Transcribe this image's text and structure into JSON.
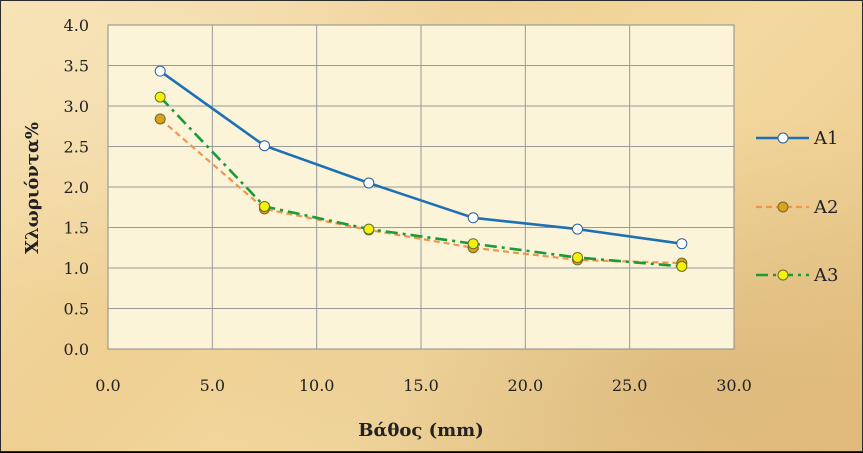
{
  "chart_data": {
    "type": "line",
    "title": "",
    "xlabel": "Βάθος (mm)",
    "ylabel": "Χλωριόντα%",
    "xlim": [
      0,
      30
    ],
    "ylim": [
      0,
      4
    ],
    "x_ticks": [
      "0.0",
      "5.0",
      "10.0",
      "15.0",
      "20.0",
      "25.0",
      "30.0"
    ],
    "y_ticks": [
      "0.0",
      "0.5",
      "1.0",
      "1.5",
      "2.0",
      "2.5",
      "3.0",
      "3.5",
      "4.0"
    ],
    "grid": true,
    "legend_position": "right",
    "x": [
      2.5,
      7.5,
      12.5,
      17.5,
      22.5,
      27.5
    ],
    "series": [
      {
        "name": "A1",
        "values": [
          3.43,
          2.51,
          2.05,
          1.62,
          1.48,
          1.3
        ],
        "color": "#1f6fb5",
        "line_style": "solid",
        "marker_fill": "#ffffff"
      },
      {
        "name": "A2",
        "values": [
          2.84,
          1.73,
          1.47,
          1.25,
          1.1,
          1.06
        ],
        "color": "#f0954a",
        "line_style": "dashed",
        "marker_fill": "#d9a21a"
      },
      {
        "name": "A3",
        "values": [
          3.11,
          1.76,
          1.48,
          1.3,
          1.13,
          1.02
        ],
        "color": "#1a9a3a",
        "line_style": "dash-dot",
        "marker_fill": "#f2f20a"
      }
    ]
  }
}
